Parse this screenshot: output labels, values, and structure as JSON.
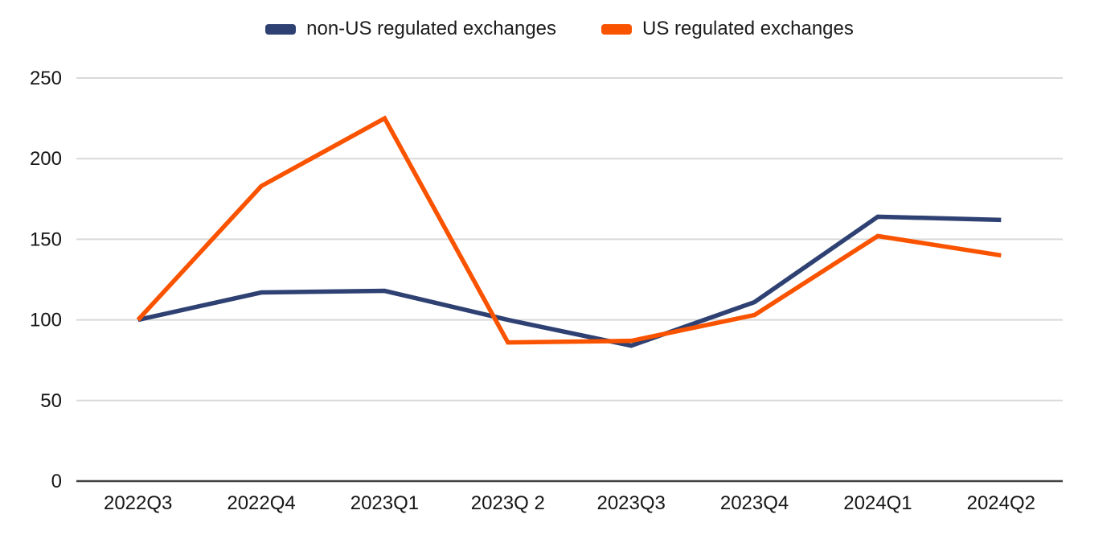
{
  "chart_data": {
    "type": "line",
    "title": "",
    "xlabel": "",
    "ylabel": "",
    "categories": [
      "2022Q3",
      "2022Q4",
      "2023Q1",
      "2023Q 2",
      "2023Q3",
      "2023Q4",
      "2024Q1",
      "2024Q2"
    ],
    "series": [
      {
        "name": "non-US regulated exchanges",
        "color": "#2E4172",
        "values": [
          100,
          117,
          118,
          100,
          84,
          111,
          164,
          162
        ]
      },
      {
        "name": "US regulated exchanges",
        "color": "#FA5300",
        "values": [
          100,
          183,
          225,
          86,
          87,
          103,
          152,
          140
        ]
      }
    ],
    "ylim": [
      0,
      250
    ],
    "yticks": [
      0,
      50,
      100,
      150,
      200,
      250
    ],
    "grid": true,
    "legend_position": "top",
    "gridline_color": "#D9D9D9",
    "axis_line_color": "#424242"
  }
}
